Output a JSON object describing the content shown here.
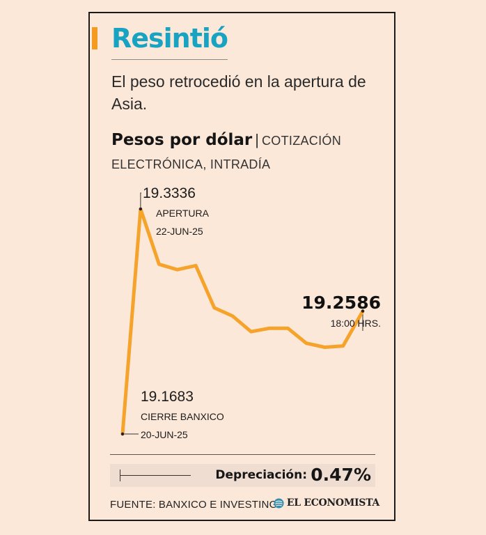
{
  "title": "Resintió",
  "subtitle": "El peso retrocedió en la apertura de Asia.",
  "chart_heading": {
    "main": "Pesos por dólar",
    "separator": "|",
    "sub": "COTIZACIÓN ELECTRÓNICA, INTRADÍA"
  },
  "chart_data": {
    "type": "line",
    "title": "Pesos por dólar",
    "subtitle": "COTIZACIÓN ELECTRÓNICA, INTRADÍA",
    "color": "#f5a32a",
    "y": [
      19.1683,
      19.3336,
      19.293,
      19.289,
      19.292,
      19.261,
      19.255,
      19.2435,
      19.246,
      19.246,
      19.235,
      19.232,
      19.233,
      19.2586
    ],
    "annotations": [
      {
        "index": 0,
        "value": "19.1683",
        "label1": "CIERRE BANXICO",
        "label2": "20-JUN-25"
      },
      {
        "index": 1,
        "value": "19.3336",
        "label1": "APERTURA",
        "label2": "22-JUN-25"
      },
      {
        "index": 13,
        "value": "19.2586",
        "label1": "18:00 HRS."
      }
    ]
  },
  "depreciation": {
    "label": "Depreciación:",
    "value": "0.47%"
  },
  "source": "FUENTE: BANXICO E INVESTING",
  "brand": "EL ECONOMISTA"
}
